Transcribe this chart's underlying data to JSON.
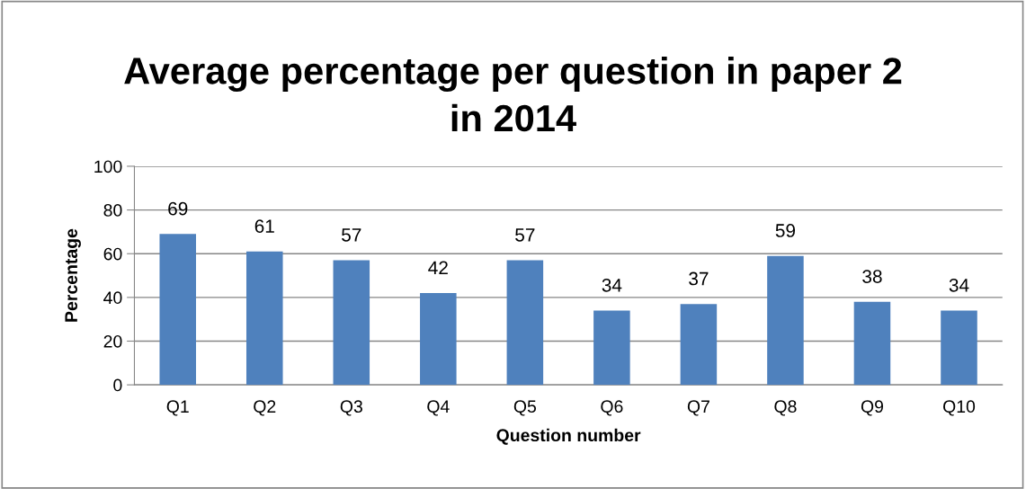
{
  "chart_data": {
    "type": "bar",
    "title": "Average percentage per question in paper 2\nin 2014",
    "xlabel": "Question number",
    "ylabel": "Percentage",
    "categories": [
      "Q1",
      "Q2",
      "Q3",
      "Q4",
      "Q5",
      "Q6",
      "Q7",
      "Q8",
      "Q9",
      "Q10"
    ],
    "values": [
      69,
      61,
      57,
      42,
      57,
      34,
      37,
      59,
      38,
      34
    ],
    "color": "#4f81bd",
    "ylim": [
      0,
      100
    ],
    "yticks": [
      0,
      20,
      40,
      60,
      80,
      100
    ],
    "grid": "y",
    "data_labels": true,
    "legend": false
  }
}
